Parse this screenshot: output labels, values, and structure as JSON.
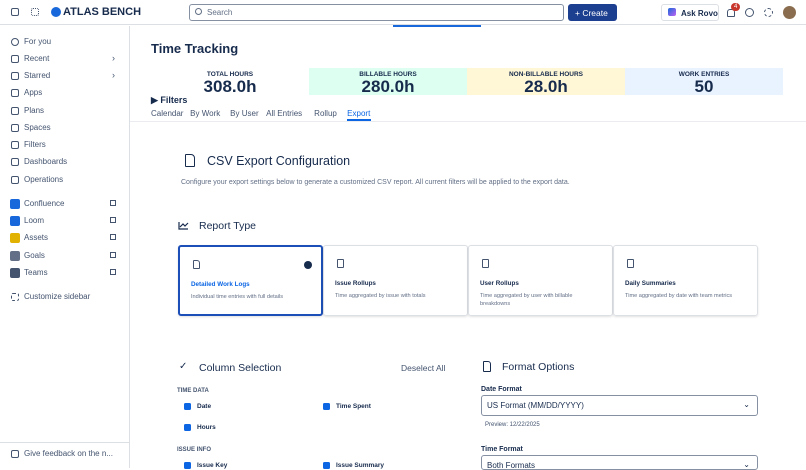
{
  "topbar": {
    "brand": "ATLAS BENCH",
    "search_placeholder": "Search",
    "create": "Create",
    "ask_rovo": "Ask Rovo",
    "notifications": "4"
  },
  "sidebar": {
    "items": [
      "For you",
      "Recent",
      "Starred",
      "Apps",
      "Plans",
      "Spaces",
      "Filters",
      "Dashboards",
      "Operations"
    ],
    "apps": [
      "Confluence",
      "Loom",
      "Assets",
      "Goals",
      "Teams"
    ],
    "customize": "Customize sidebar",
    "feedback": "Give feedback on the n..."
  },
  "page": {
    "title": "Time Tracking",
    "stats": [
      {
        "label": "TOTAL HOURS",
        "value": "308.0h"
      },
      {
        "label": "BILLABLE HOURS",
        "value": "280.0h"
      },
      {
        "label": "NON-BILLABLE HOURS",
        "value": "28.0h"
      },
      {
        "label": "WORK ENTRIES",
        "value": "50"
      }
    ],
    "filters": "Filters",
    "tabs": [
      "Calendar",
      "By Work",
      "By User",
      "All Entries",
      "Rollup",
      "Export"
    ]
  },
  "export": {
    "title": "CSV Export Configuration",
    "description": "Configure your export settings below to generate a customized CSV report. All current filters will be applied to the export data.",
    "report_type": {
      "heading": "Report Type",
      "cards": [
        {
          "title": "Detailed Work Logs",
          "desc": "Individual time entries with full details"
        },
        {
          "title": "Issue Rollups",
          "desc": "Time aggregated by issue with totals"
        },
        {
          "title": "User Rollups",
          "desc": "Time aggregated by user with billable breakdowns"
        },
        {
          "title": "Daily Summaries",
          "desc": "Time aggregated by date with team metrics"
        }
      ]
    },
    "columns": {
      "heading": "Column Selection",
      "deselect": "Deselect All",
      "groups": [
        {
          "label": "TIME DATA",
          "items": [
            "Date",
            "Time Spent",
            "Hours"
          ]
        },
        {
          "label": "ISSUE INFO",
          "items": [
            "Issue Key",
            "Issue Summary"
          ]
        }
      ]
    },
    "format": {
      "heading": "Format Options",
      "date_label": "Date Format",
      "date_value": "US Format (MM/DD/YYYY)",
      "preview": "Preview: 12/22/2025",
      "time_label": "Time Format",
      "time_value": "Both Formats"
    }
  }
}
